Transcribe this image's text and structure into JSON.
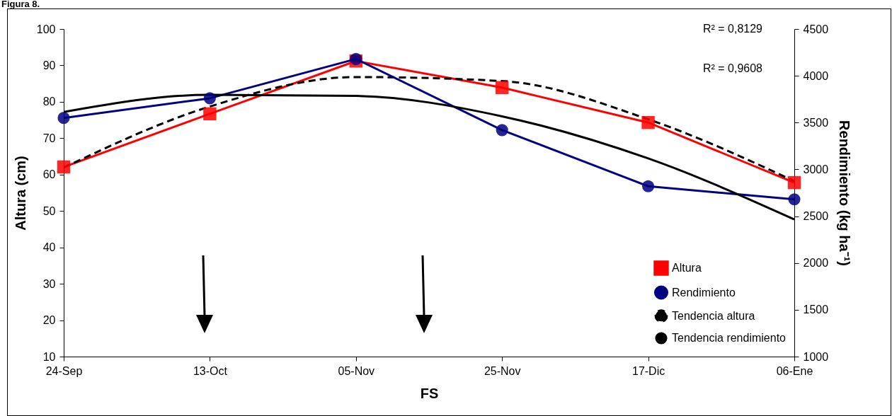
{
  "chart_data": {
    "type": "line",
    "title": "Figura 8.",
    "xlabel": "FS",
    "ylabel": "Altura (cm)",
    "y2label": "Rendimiento (kg ha⁻¹)",
    "categories": [
      "24-Sep",
      "13-Oct",
      "05-Nov",
      "25-Nov",
      "17-Dic",
      "06-Ene"
    ],
    "ylim": [
      10,
      100
    ],
    "yticks": [
      10,
      20,
      30,
      40,
      50,
      60,
      70,
      80,
      90,
      100
    ],
    "y2lim": [
      1000,
      4500
    ],
    "y2ticks": [
      1000,
      1500,
      2000,
      2500,
      3000,
      3500,
      4000,
      4500
    ],
    "grid": false,
    "legend": "bottom right",
    "annotations": [
      "R² = 0,8129",
      "R² = 0,9608"
    ],
    "series": [
      {
        "name": "Altura",
        "color": "#ff0000",
        "marker": "square",
        "values": [
          62.1,
          76.7,
          91.2,
          83.9,
          74.3,
          57.8
        ]
      },
      {
        "name": "Rendimiento",
        "color": "#000080",
        "marker": "circle",
        "axis": "y2",
        "values": [
          3550,
          3760,
          4180,
          3420,
          2820,
          2680
        ]
      },
      {
        "name": "Tendencia altura",
        "color": "#000000",
        "marker": "none",
        "line_style": "dashed",
        "values": [
          61.9,
          78.7,
          86.8,
          85.7,
          75.2,
          58.2
        ]
      },
      {
        "name": "Tendencia rendimiento",
        "color": "#000000",
        "marker": "none",
        "line_style": "solid",
        "axis": "y2",
        "values": [
          3613,
          3797,
          3785,
          3567,
          3117,
          2466
        ]
      }
    ]
  }
}
